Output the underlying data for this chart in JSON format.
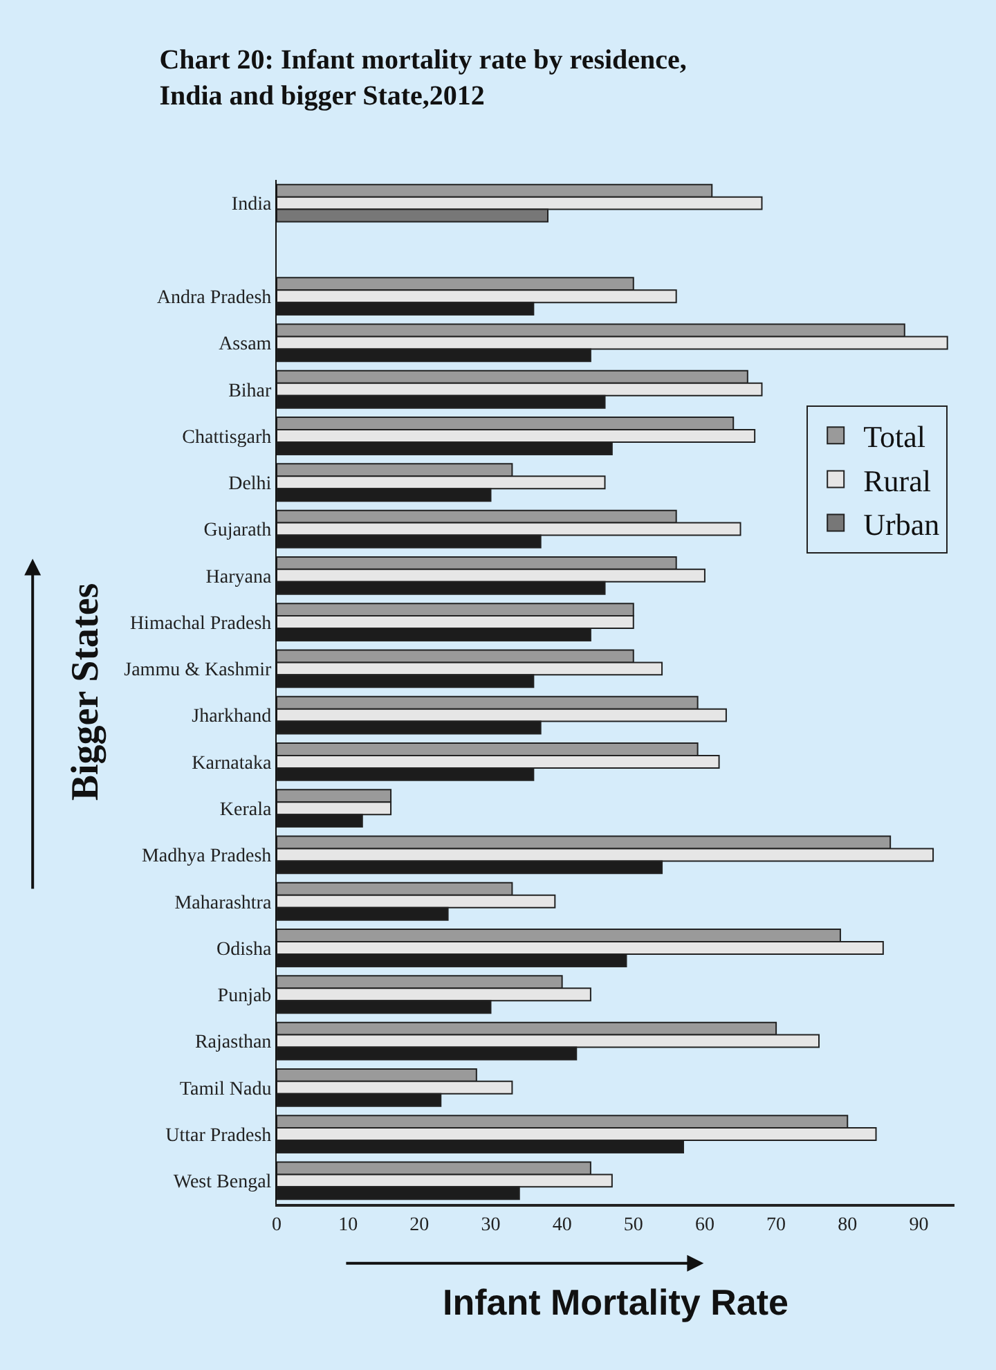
{
  "chart_data": {
    "type": "bar",
    "orientation": "horizontal",
    "title": "Chart 20: Infant mortality rate by residence, India and bigger State,2012",
    "xlabel": "Infant Mortality Rate",
    "ylabel": "Bigger States",
    "categories": [
      "India",
      null,
      "Andra Pradesh",
      "Assam",
      "Bihar",
      "Chattisgarh",
      "Delhi",
      "Gujarath",
      "Haryana",
      "Himachal Pradesh",
      "Jammu & Kashmir",
      "Jharkhand",
      "Karnataka",
      "Kerala",
      "Madhya Pradesh",
      "Maharashtra",
      "Odisha",
      "Punjab",
      "Rajasthan",
      "Tamil Nadu",
      "Uttar Pradesh",
      "West Bengal"
    ],
    "series": [
      {
        "name": "Total",
        "color": "#9a9a9a",
        "values": [
          61,
          null,
          50,
          88,
          66,
          64,
          33,
          56,
          56,
          50,
          50,
          59,
          59,
          16,
          86,
          33,
          79,
          40,
          70,
          28,
          80,
          44
        ]
      },
      {
        "name": "Rural",
        "color": "#e6e6e6",
        "values": [
          68,
          null,
          56,
          94,
          68,
          67,
          46,
          65,
          60,
          50,
          54,
          63,
          62,
          16,
          92,
          39,
          85,
          44,
          76,
          33,
          84,
          47
        ]
      },
      {
        "name": "Urban",
        "color": "#1c1c1c",
        "colors": [
          "#777777",
          null,
          "#1c1c1c",
          "#1c1c1c",
          "#1c1c1c",
          "#1c1c1c",
          "#1c1c1c",
          "#1c1c1c",
          "#1c1c1c",
          "#1c1c1c",
          "#1c1c1c",
          "#1c1c1c",
          "#1c1c1c",
          "#1c1c1c",
          "#1c1c1c",
          "#1c1c1c",
          "#1c1c1c",
          "#1c1c1c",
          "#1c1c1c",
          "#1c1c1c",
          "#1c1c1c",
          "#1c1c1c"
        ],
        "values": [
          38,
          null,
          36,
          44,
          46,
          47,
          30,
          37,
          46,
          44,
          36,
          37,
          36,
          12,
          54,
          24,
          49,
          30,
          42,
          23,
          57,
          34
        ]
      }
    ],
    "xlim": [
      0,
      95
    ],
    "xticks": [
      0,
      10,
      20,
      30,
      40,
      50,
      60,
      70,
      80,
      90
    ],
    "grid": false,
    "legend": "right"
  }
}
